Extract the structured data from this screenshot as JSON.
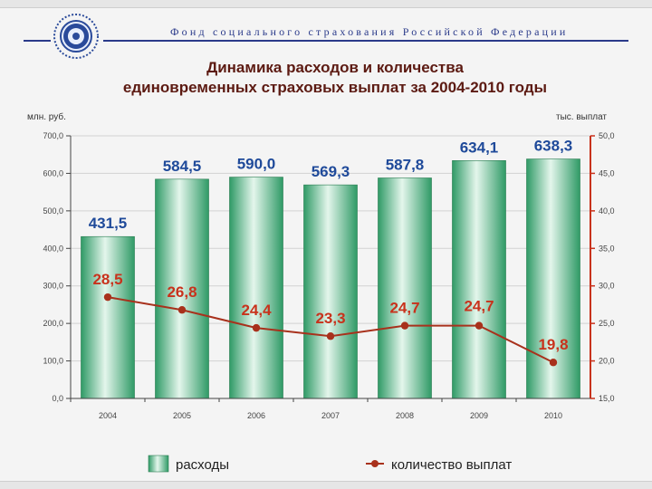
{
  "header": {
    "org_name": "Фонд социального страхования Российской Федерации",
    "logo": "fss-emblem-icon"
  },
  "chart_data": {
    "type": "bar",
    "title": "Динамика расходов и количества",
    "subtitle": "единовременных страховых выплат за 2004-2010 годы",
    "categories": [
      "2004",
      "2005",
      "2006",
      "2007",
      "2008",
      "2009",
      "2010"
    ],
    "y_left": {
      "label": "млн. руб.",
      "range": [
        0,
        700
      ],
      "ticks": [
        "0,0",
        "100,0",
        "200,0",
        "300,0",
        "400,0",
        "500,0",
        "600,0",
        "700,0"
      ]
    },
    "y_right": {
      "label": "тыс. выплат",
      "range": [
        15,
        50
      ],
      "ticks": [
        "15,0",
        "20,0",
        "25,0",
        "30,0",
        "35,0",
        "40,0",
        "45,0",
        "50,0"
      ]
    },
    "series": [
      {
        "name": "расходы",
        "kind": "bar",
        "axis": "left",
        "values": [
          431.5,
          584.5,
          590.0,
          569.3,
          587.8,
          634.1,
          638.3
        ],
        "labels": [
          "431,5",
          "584,5",
          "590,0",
          "569,3",
          "587,8",
          "634,1",
          "638,3"
        ]
      },
      {
        "name": "количество выплат",
        "kind": "line",
        "axis": "right",
        "values": [
          28.5,
          26.8,
          24.4,
          23.3,
          24.7,
          24.7,
          19.8
        ],
        "labels": [
          "28,5",
          "26,8",
          "24,4",
          "23,3",
          "24,7",
          "24,7",
          "19,8"
        ]
      }
    ],
    "legend": {
      "position": "bottom"
    },
    "colors": {
      "bar": "#3ea876",
      "bar_light": "#d6f0e2",
      "line": "#a8311c",
      "bar_label": "#1f4a9a",
      "line_label": "#c8321c",
      "right_axis": "#c8321c"
    }
  }
}
